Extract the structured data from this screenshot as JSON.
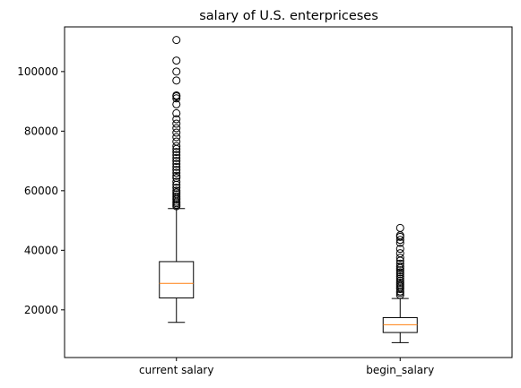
{
  "chart_data": {
    "type": "box",
    "title": "salary of U.S. enterpriceses",
    "xlabel": "",
    "ylabel": "",
    "categories": [
      "current salary",
      "begin_salary"
    ],
    "ylim": [
      4000,
      115000
    ],
    "yticks": [
      20000,
      40000,
      60000,
      80000,
      100000
    ],
    "ytick_labels": [
      "20000",
      "40000",
      "60000",
      "80000",
      "100000"
    ],
    "grid": false,
    "series": [
      {
        "category": "current salary",
        "whisker_low": 15800,
        "q1": 24000,
        "median": 28900,
        "q3": 36200,
        "whisker_high": 54000,
        "outliers": [
          54800,
          55300,
          55800,
          56300,
          57000,
          57500,
          58100,
          58800,
          59400,
          60000,
          61000,
          62000,
          63000,
          64300,
          65000,
          66000,
          67000,
          68000,
          69000,
          70000,
          71000,
          72000,
          73000,
          74000,
          75000,
          76500,
          78000,
          79500,
          81000,
          82500,
          84000,
          86000,
          89000,
          91000,
          91700,
          92000,
          97000,
          100000,
          103700,
          110600
        ]
      },
      {
        "category": "begin_salary",
        "whisker_low": 9000,
        "q1": 12400,
        "median": 15000,
        "q3": 17400,
        "whisker_high": 23800,
        "outliers": [
          25000,
          25700,
          26200,
          27000,
          27500,
          28000,
          28500,
          29100,
          29800,
          30500,
          31200,
          32000,
          32600,
          33300,
          34000,
          34600,
          35500,
          36500,
          37500,
          39000,
          40500,
          42500,
          43500,
          44500,
          45000,
          47500
        ]
      }
    ],
    "colors": {
      "box": "#000000",
      "median": "#ff7f0e",
      "outlier": "#000000",
      "background": "#ffffff"
    }
  }
}
